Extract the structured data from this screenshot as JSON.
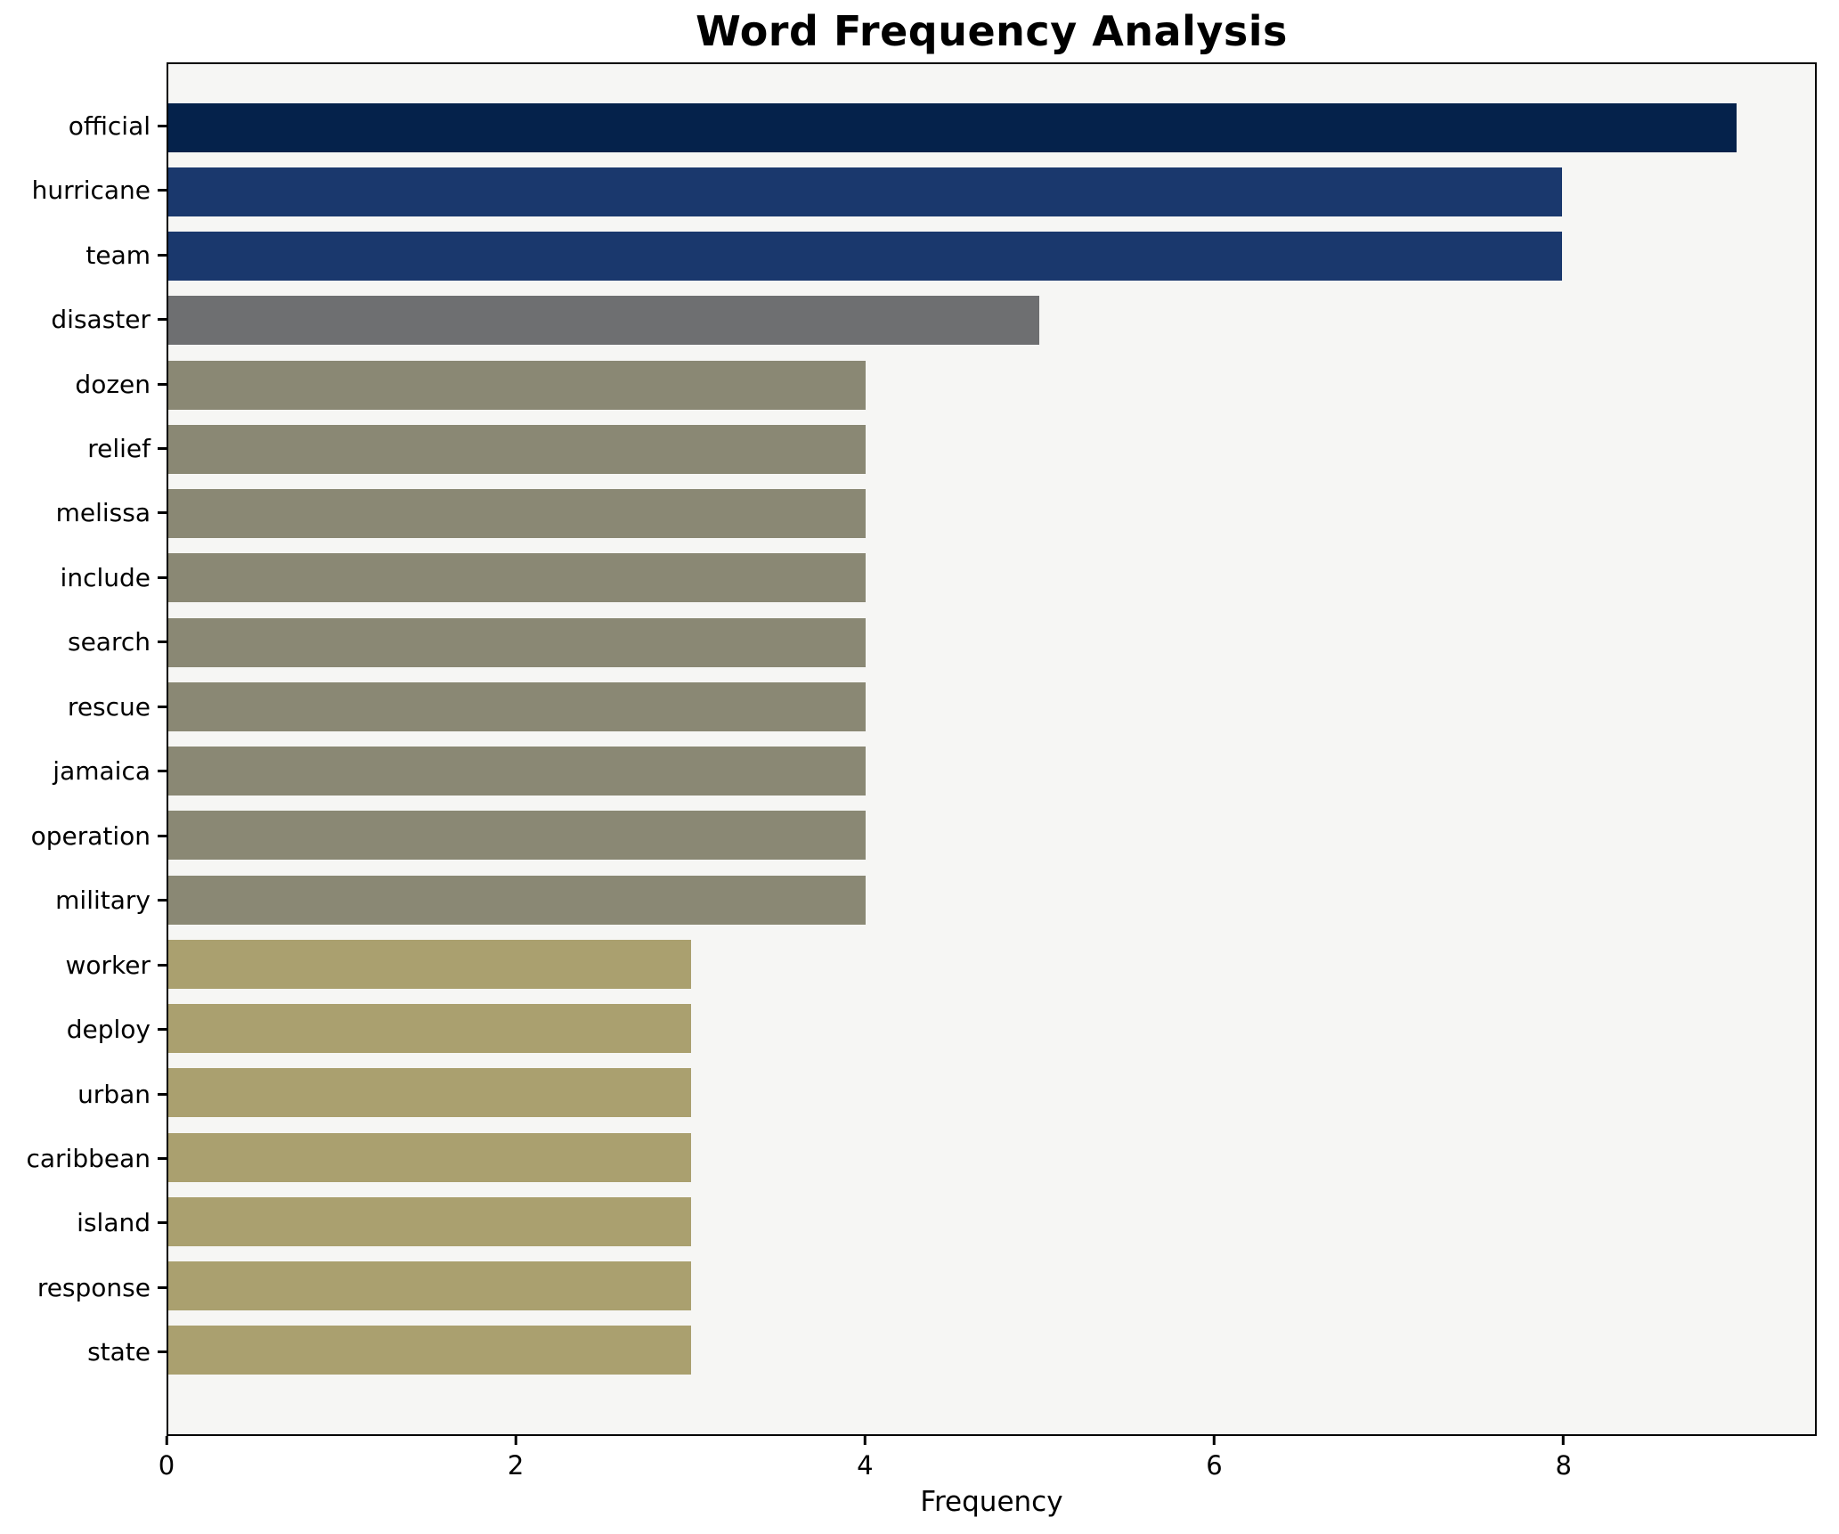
{
  "chart_data": {
    "type": "bar",
    "orientation": "horizontal",
    "title": "Word Frequency Analysis",
    "xlabel": "Frequency",
    "ylabel": "",
    "categories": [
      "official",
      "hurricane",
      "team",
      "disaster",
      "dozen",
      "relief",
      "melissa",
      "include",
      "search",
      "rescue",
      "jamaica",
      "operation",
      "military",
      "worker",
      "deploy",
      "urban",
      "caribbean",
      "island",
      "response",
      "state"
    ],
    "values": [
      9,
      8,
      8,
      5,
      4,
      4,
      4,
      4,
      4,
      4,
      4,
      4,
      4,
      3,
      3,
      3,
      3,
      3,
      3,
      3
    ],
    "xlim": [
      0,
      9.45
    ],
    "xticks": [
      0,
      2,
      4,
      6,
      8
    ],
    "grid": false,
    "legend_position": "none",
    "bar_colors": [
      "#05224b",
      "#1a386d",
      "#1a386d",
      "#6e6f71",
      "#8a8874",
      "#8a8874",
      "#8a8874",
      "#8a8874",
      "#8a8874",
      "#8a8874",
      "#8a8874",
      "#8a8874",
      "#8a8874",
      "#aaa06f",
      "#aaa06f",
      "#aaa06f",
      "#aaa06f",
      "#aaa06f",
      "#aaa06f",
      "#aaa06f"
    ],
    "plot_background": "#f6f6f4",
    "spine_color": "#000000",
    "text_color": "#000000"
  }
}
